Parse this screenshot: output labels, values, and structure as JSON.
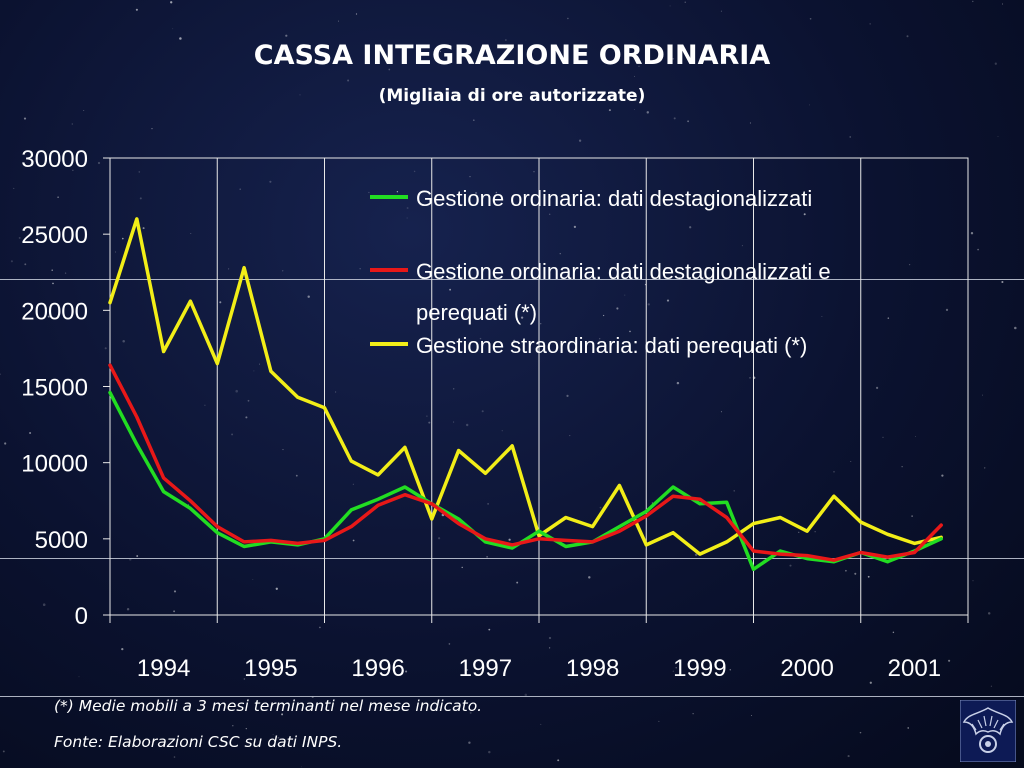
{
  "title": "CASSA INTEGRAZIONE ORDINARIA",
  "subtitle": "(Migliaia di ore autorizzate)",
  "footnote": "(*) Medie mobili a 3 mesi terminanti nel mese indicato.",
  "source": "Fonte: Elaborazioni CSC su dati INPS.",
  "chart_data": {
    "type": "line",
    "title": "CASSA INTEGRAZIONE ORDINARIA",
    "subtitle": "(Migliaia di ore autorizzate)",
    "xlabel": "",
    "ylabel": "",
    "xlim": [
      1994,
      2002
    ],
    "ylim": [
      0,
      30000
    ],
    "x_ticks": [
      "1994",
      "1995",
      "1996",
      "1997",
      "1998",
      "1999",
      "2000",
      "2001"
    ],
    "y_ticks": [
      "0",
      "5000",
      "10000",
      "15000",
      "20000",
      "25000",
      "30000"
    ],
    "grid": "vertical",
    "legend_position": "top-right",
    "x": [
      1994.0,
      1994.25,
      1994.5,
      1994.75,
      1995.0,
      1995.25,
      1995.5,
      1995.75,
      1996.0,
      1996.25,
      1996.5,
      1996.75,
      1997.0,
      1997.25,
      1997.5,
      1997.75,
      1998.0,
      1998.25,
      1998.5,
      1998.75,
      1999.0,
      1999.25,
      1999.5,
      1999.75,
      2000.0,
      2000.25,
      2000.5,
      2000.75,
      2001.0,
      2001.25,
      2001.5,
      2001.75
    ],
    "series": [
      {
        "name": "Gestione ordinaria: dati destagionalizzati",
        "color": "#22dd22",
        "values": [
          14600,
          11200,
          8100,
          7000,
          5400,
          4500,
          4800,
          4600,
          5000,
          6900,
          7600,
          8400,
          7300,
          6300,
          4800,
          4400,
          5500,
          4500,
          4800,
          5800,
          6800,
          8400,
          7300,
          7400,
          3000,
          4200,
          3700,
          3500,
          4100,
          3500,
          4200,
          5000
        ]
      },
      {
        "name": "Gestione ordinaria: dati destagionalizzati e perequati (*)",
        "color": "#e81818",
        "values": [
          16400,
          13000,
          9000,
          7500,
          5800,
          4800,
          4900,
          4700,
          4900,
          5800,
          7200,
          7900,
          7300,
          6000,
          5000,
          4600,
          5000,
          4900,
          4800,
          5500,
          6500,
          7800,
          7600,
          6400,
          4200,
          4000,
          3900,
          3600,
          4100,
          3800,
          4100,
          5900
        ]
      },
      {
        "name": "Gestione straordinaria: dati perequati (*)",
        "color": "#f2ee18",
        "values": [
          20500,
          26000,
          17300,
          20600,
          16500,
          22800,
          16000,
          14300,
          13600,
          10100,
          9200,
          11000,
          6300,
          10800,
          9300,
          11100,
          5200,
          6400,
          5800,
          8500,
          4600,
          5400,
          4000,
          4800,
          6000,
          6400,
          5500,
          7800,
          6100,
          5300,
          4700,
          5100
        ]
      }
    ]
  }
}
